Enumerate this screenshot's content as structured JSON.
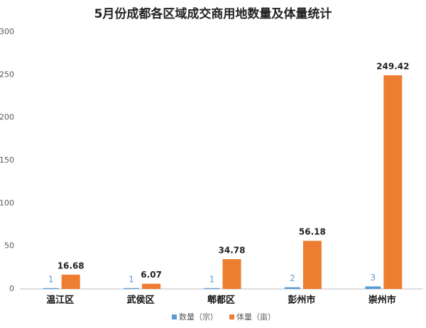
{
  "chart_data": {
    "type": "bar",
    "title": "5月份成都各区域成交商用地数量及体量统计",
    "categories": [
      "温江区",
      "武侯区",
      "郫都区",
      "彭州市",
      "崇州市"
    ],
    "series": [
      {
        "name": "数量（宗）",
        "color": "#5b9bd5",
        "values": [
          1,
          1,
          1,
          2,
          3
        ]
      },
      {
        "name": "体量（亩）",
        "color": "#ed7d31",
        "values": [
          16.68,
          6.07,
          34.78,
          56.18,
          249.42
        ]
      }
    ],
    "ylim": [
      0,
      300
    ],
    "yticks": [
      0,
      50,
      100,
      150,
      200,
      250,
      300
    ],
    "grid": false,
    "legend": "bottom"
  }
}
